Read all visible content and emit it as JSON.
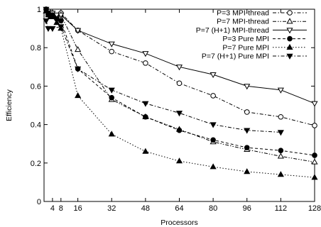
{
  "chart_data": {
    "type": "line",
    "title": "",
    "xlabel": "Processors",
    "ylabel": "Efficiency",
    "xlim": [
      0,
      128
    ],
    "ylim": [
      0,
      1
    ],
    "xticks": [
      4,
      8,
      16,
      32,
      48,
      64,
      80,
      96,
      112,
      128
    ],
    "yticks": [
      0,
      0.2,
      0.4,
      0.6,
      0.8,
      1
    ],
    "ytick_labels": [
      "0",
      "0.2",
      "0.4",
      "0.6",
      "0.8",
      "1"
    ],
    "grid": false,
    "legend_position": "top-right",
    "series": [
      {
        "name": "P=3 MPI-thread",
        "line_style": "dash-dot",
        "marker": "open-circle",
        "x": [
          1,
          2,
          3,
          4,
          6,
          8,
          16,
          32,
          48,
          64,
          80,
          96,
          112,
          128
        ],
        "y": [
          1.0,
          0.99,
          0.98,
          0.98,
          0.96,
          0.98,
          0.89,
          0.78,
          0.72,
          0.615,
          0.55,
          0.465,
          0.44,
          0.395
        ]
      },
      {
        "name": "P=7 MPI-thread",
        "line_style": "dash-dot-dot",
        "marker": "open-triangle-up",
        "x": [
          1,
          2,
          3,
          4,
          6,
          8,
          16,
          32,
          48,
          64,
          80,
          96,
          112,
          128
        ],
        "y": [
          0.99,
          0.98,
          0.97,
          0.97,
          0.96,
          0.97,
          0.79,
          0.53,
          0.44,
          0.375,
          0.31,
          0.27,
          0.235,
          0.205
        ]
      },
      {
        "name": "P=7 (H+1) MPI-thread",
        "line_style": "solid",
        "marker": "open-triangle-down",
        "x": [
          1,
          2,
          3,
          4,
          6,
          8,
          16,
          32,
          48,
          64,
          80,
          96,
          112,
          128
        ],
        "y": [
          1.0,
          0.99,
          0.98,
          0.98,
          0.97,
          0.97,
          0.89,
          0.82,
          0.77,
          0.7,
          0.66,
          0.6,
          0.58,
          0.51
        ]
      },
      {
        "name": "P=3 Pure MPI",
        "line_style": "dashed",
        "marker": "filled-circle",
        "x": [
          1,
          2,
          3,
          4,
          6,
          8,
          16,
          32,
          48,
          64,
          80,
          96,
          112,
          128
        ],
        "y": [
          1.0,
          0.98,
          0.97,
          0.97,
          0.95,
          0.94,
          0.69,
          0.54,
          0.44,
          0.37,
          0.32,
          0.28,
          0.265,
          0.24
        ]
      },
      {
        "name": "P=7 Pure MPI",
        "line_style": "dotted",
        "marker": "filled-triangle-up",
        "x": [
          1,
          2,
          3,
          4,
          6,
          8,
          16,
          32,
          48,
          64,
          80,
          96,
          112,
          128
        ],
        "y": [
          0.99,
          0.97,
          0.96,
          0.96,
          0.93,
          0.9,
          0.55,
          0.35,
          0.26,
          0.21,
          0.18,
          0.155,
          0.14,
          0.125
        ]
      },
      {
        "name": "P=7 (H+1) Pure MPI",
        "line_style": "dash-dot",
        "marker": "filled-triangle-down",
        "x": [
          1,
          2,
          4,
          8,
          16,
          32,
          48,
          64,
          80,
          96,
          112
        ],
        "y": [
          0.94,
          0.9,
          0.9,
          0.91,
          0.69,
          0.58,
          0.51,
          0.46,
          0.4,
          0.37,
          0.36
        ]
      }
    ]
  }
}
